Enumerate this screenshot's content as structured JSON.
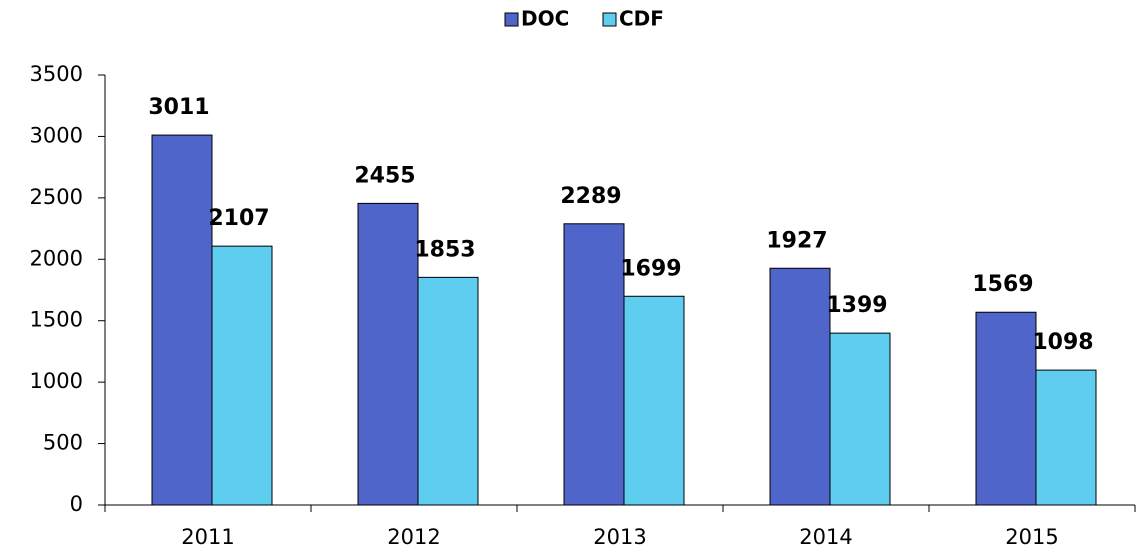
{
  "chart_data": {
    "type": "bar",
    "categories": [
      "2011",
      "2012",
      "2013",
      "2014",
      "2015"
    ],
    "series": [
      {
        "name": "DOC",
        "color": "#4f65c9",
        "values": [
          3011,
          2455,
          2289,
          1927,
          1569
        ]
      },
      {
        "name": "CDF",
        "color": "#5fcdf0",
        "values": [
          2107,
          1853,
          1699,
          1399,
          1098
        ]
      }
    ],
    "ylim": [
      0,
      3500
    ],
    "yticks": [
      0,
      500,
      1000,
      1500,
      2000,
      2500,
      3000,
      3500
    ],
    "legend": "top",
    "grid": false
  }
}
